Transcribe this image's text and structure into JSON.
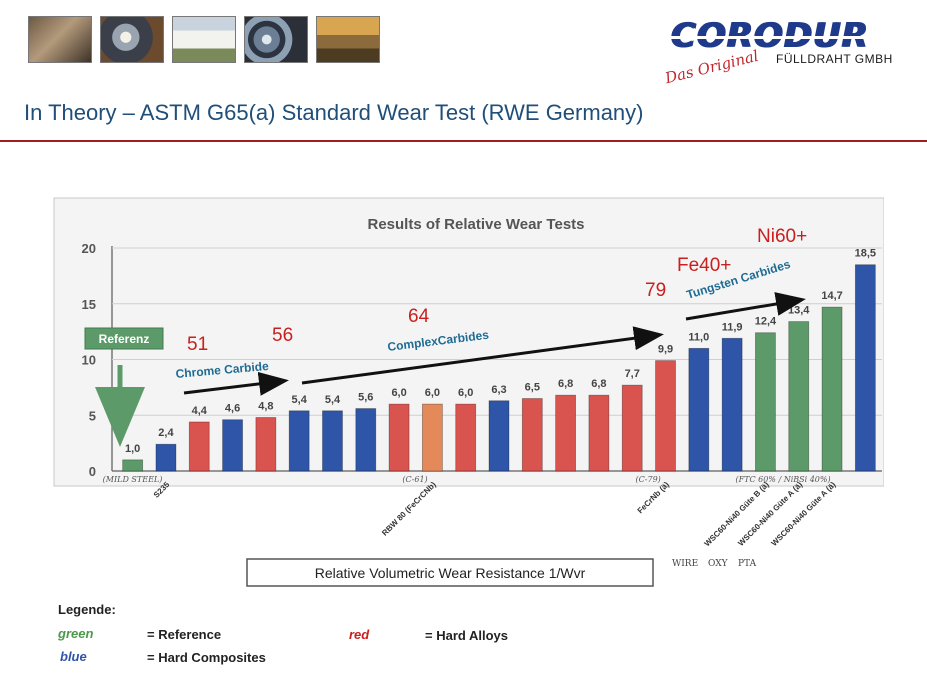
{
  "header": {
    "images": [
      "factory-photo",
      "welding-photo",
      "building-photo",
      "wire-coil-photo",
      "excavator-photo"
    ],
    "logo_name": "CORODUR",
    "logo_tagline": "Das Original",
    "logo_subtitle": "FÜLLDRAHT GMBH"
  },
  "slide_title": "In Theory – ASTM G65(a) Standard Wear Test (RWE Germany)",
  "colors": {
    "title": "#1f4e79",
    "rule": "#a31c22",
    "green_bar": "#5d9a6a",
    "blue_bar": "#2e55a8",
    "red_bar": "#d9534f",
    "orange_bar": "#e48a5a",
    "annotation_red": "#c8201e",
    "annotation_teal": "#1f6b93"
  },
  "chart_data": {
    "type": "bar",
    "title": "Results of Relative Wear Tests",
    "xlabel": "Relative Volumetric Wear Resistance 1/Wvr",
    "ylabel": "",
    "ylim": [
      0,
      20
    ],
    "yticks": [
      0,
      5,
      10,
      15,
      20
    ],
    "values": [
      1.0,
      2.4,
      4.4,
      4.6,
      4.8,
      5.4,
      5.4,
      5.6,
      6.0,
      6.0,
      6.0,
      6.3,
      6.5,
      6.8,
      6.8,
      7.7,
      9.9,
      11.0,
      11.9,
      12.4,
      13.4,
      14.7,
      18.5
    ],
    "value_labels": [
      "1,0",
      "2,4",
      "4,4",
      "4,6",
      "4,8",
      "5,4",
      "5,4",
      "5,6",
      "6,0",
      "6,0",
      "6,0",
      "6,3",
      "6,5",
      "6,8",
      "6,8",
      "7,7",
      "9,9",
      "11,0",
      "11,9",
      "12,4",
      "13,4",
      "14,7",
      "18,5"
    ],
    "bar_colors": [
      "green",
      "blue",
      "red",
      "blue",
      "red",
      "blue",
      "blue",
      "blue",
      "red",
      "orange",
      "red",
      "blue",
      "red",
      "red",
      "red",
      "red",
      "red",
      "blue",
      "blue",
      "green",
      "green",
      "green",
      "blue"
    ],
    "category_labels": [
      {
        "index": 1,
        "text": "S235"
      },
      {
        "index": 9,
        "text": "RBW 80 (FeCrCNb)"
      },
      {
        "index": 16,
        "text": "FeCrNb (ä)"
      },
      {
        "index": 19,
        "text": "WSC60-Ni40 Güte B (ä)"
      },
      {
        "index": 20,
        "text": "WSC60-Ni40 Güte A (ä)"
      },
      {
        "index": 21,
        "text": "WSC60-Ni40 Güte A (ä)"
      }
    ],
    "group_notes": [
      {
        "index": 0,
        "text": "(MILD STEEL)"
      },
      {
        "index": 9,
        "text": "(C-61)"
      },
      {
        "index": 16,
        "text": "(C-79)"
      },
      {
        "index": 19,
        "text": "(FTC 60% / NiBSi 40%)"
      }
    ],
    "process_labels": [
      "WIRE",
      "OXY",
      "PTA"
    ],
    "reference_box": "Referenz",
    "annotations": [
      {
        "text": "51",
        "kind": "hardness"
      },
      {
        "text": "56",
        "kind": "hardness"
      },
      {
        "text": "64",
        "kind": "hardness"
      },
      {
        "text": "79",
        "kind": "hardness"
      },
      {
        "text": "Fe40+",
        "kind": "hardness"
      },
      {
        "text": "Ni60+",
        "kind": "hardness"
      },
      {
        "text": "Chrome Carbide",
        "kind": "group"
      },
      {
        "text": "ComplexCarbides",
        "kind": "group"
      },
      {
        "text": "Tungsten Carbides",
        "kind": "group"
      }
    ],
    "legend": {
      "title": "Legende:",
      "items": [
        {
          "color_word": "green",
          "meaning": "= Reference"
        },
        {
          "color_word": "red",
          "meaning": "= Hard Alloys"
        },
        {
          "color_word": "blue",
          "meaning": "= Hard Composites"
        }
      ]
    }
  }
}
